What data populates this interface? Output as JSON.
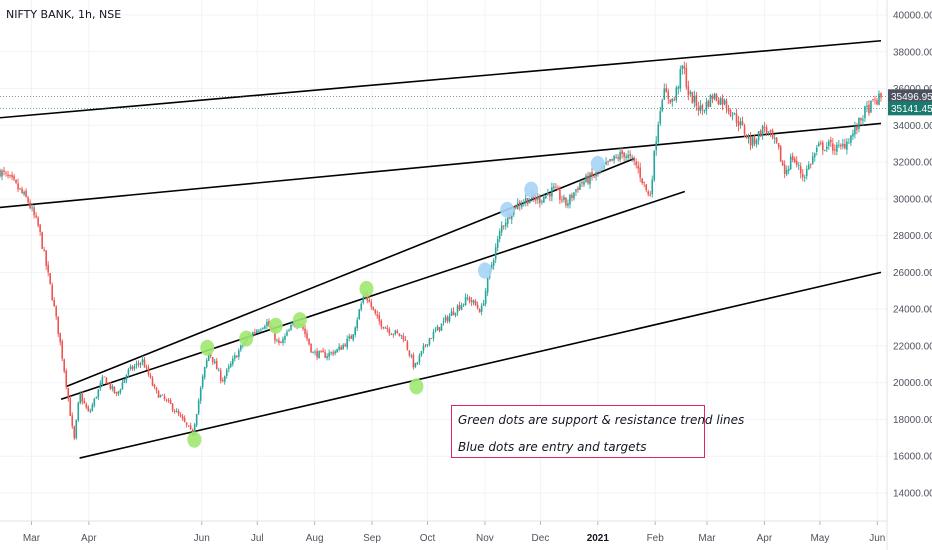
{
  "header": {
    "symbol": "NIFTY BANK, 1h, NSE"
  },
  "annotation": {
    "line1": "Green dots are support & resistance trend lines",
    "line2": "Blue dots are entry and targets"
  },
  "colors": {
    "up": "#26a69a",
    "down": "#ef5350",
    "trendline": "#000000",
    "green_dot": "#9fe870",
    "blue_dot": "#a6d4f5",
    "tag_current": "#4c525e",
    "tag_close": "#1a7a6e",
    "note_border": "#e0245e"
  },
  "chart_data": {
    "type": "candlestick",
    "title": "NIFTY BANK, 1h, NSE",
    "y_ticks": [
      "14000.00",
      "16000.00",
      "18000.00",
      "20000.00",
      "22000.00",
      "24000.00",
      "26000.00",
      "28000.00",
      "30000.00",
      "32000.00",
      "34000.00",
      "36000.00",
      "38000.00",
      "40000.00"
    ],
    "ylim": [
      13000,
      40800
    ],
    "price_tags": [
      {
        "label": "35496.95",
        "value": 35496.95,
        "style": "current"
      },
      {
        "label": "35141.45",
        "value": 35141.45,
        "style": "close"
      }
    ],
    "x_ticks": [
      {
        "label": "Mar",
        "date": "2020-03-01"
      },
      {
        "label": "Apr",
        "date": "2020-04-01"
      },
      {
        "label": "Jun",
        "date": "2020-06-01"
      },
      {
        "label": "Jul",
        "date": "2020-07-01"
      },
      {
        "label": "Aug",
        "date": "2020-08-01"
      },
      {
        "label": "Sep",
        "date": "2020-09-01"
      },
      {
        "label": "Oct",
        "date": "2020-10-01"
      },
      {
        "label": "Nov",
        "date": "2020-11-01"
      },
      {
        "label": "Dec",
        "date": "2020-12-01"
      },
      {
        "label": "2021",
        "date": "2021-01-01",
        "bold": true
      },
      {
        "label": "Feb",
        "date": "2021-02-01"
      },
      {
        "label": "Mar",
        "date": "2021-03-01"
      },
      {
        "label": "Apr",
        "date": "2021-04-01"
      },
      {
        "label": "May",
        "date": "2021-05-01"
      },
      {
        "label": "Jun",
        "date": "2021-06-01"
      }
    ],
    "price_path": [
      [
        "2020-02-13",
        31500
      ],
      [
        "2020-02-20",
        30900
      ],
      [
        "2020-02-28",
        29900
      ],
      [
        "2020-03-05",
        28400
      ],
      [
        "2020-03-12",
        24800
      ],
      [
        "2020-03-16",
        22500
      ],
      [
        "2020-03-19",
        20500
      ],
      [
        "2020-03-24",
        16800
      ],
      [
        "2020-03-27",
        19400
      ],
      [
        "2020-04-01",
        18300
      ],
      [
        "2020-04-09",
        20300
      ],
      [
        "2020-04-16",
        19300
      ],
      [
        "2020-04-22",
        20600
      ],
      [
        "2020-04-30",
        21200
      ],
      [
        "2020-05-07",
        19500
      ],
      [
        "2020-05-15",
        18800
      ],
      [
        "2020-05-22",
        17900
      ],
      [
        "2020-05-27",
        17200
      ],
      [
        "2020-06-02",
        20500
      ],
      [
        "2020-06-05",
        21700
      ],
      [
        "2020-06-12",
        20100
      ],
      [
        "2020-06-19",
        21400
      ],
      [
        "2020-06-26",
        22500
      ],
      [
        "2020-07-06",
        23300
      ],
      [
        "2020-07-13",
        22000
      ],
      [
        "2020-07-20",
        23100
      ],
      [
        "2020-07-24",
        23400
      ],
      [
        "2020-07-31",
        21600
      ],
      [
        "2020-08-07",
        21500
      ],
      [
        "2020-08-14",
        21800
      ],
      [
        "2020-08-21",
        22500
      ],
      [
        "2020-08-28",
        24900
      ],
      [
        "2020-09-04",
        23400
      ],
      [
        "2020-09-11",
        22800
      ],
      [
        "2020-09-18",
        22500
      ],
      [
        "2020-09-24",
        20800
      ],
      [
        "2020-10-01",
        22300
      ],
      [
        "2020-10-09",
        23200
      ],
      [
        "2020-10-16",
        24000
      ],
      [
        "2020-10-23",
        24600
      ],
      [
        "2020-10-30",
        23900
      ],
      [
        "2020-11-04",
        26200
      ],
      [
        "2020-11-10",
        28500
      ],
      [
        "2020-11-17",
        29600
      ],
      [
        "2020-11-24",
        30000
      ],
      [
        "2020-12-01",
        30000
      ],
      [
        "2020-12-08",
        30500
      ],
      [
        "2020-12-15",
        29700
      ],
      [
        "2020-12-22",
        30800
      ],
      [
        "2020-12-31",
        31300
      ],
      [
        "2021-01-08",
        32000
      ],
      [
        "2021-01-15",
        32500
      ],
      [
        "2021-01-22",
        31800
      ],
      [
        "2021-01-29",
        30000
      ],
      [
        "2021-02-02",
        33800
      ],
      [
        "2021-02-05",
        35800
      ],
      [
        "2021-02-11",
        35300
      ],
      [
        "2021-02-16",
        37300
      ],
      [
        "2021-02-19",
        35700
      ],
      [
        "2021-02-26",
        34800
      ],
      [
        "2021-03-04",
        35600
      ],
      [
        "2021-03-10",
        35300
      ],
      [
        "2021-03-18",
        34200
      ],
      [
        "2021-03-25",
        33000
      ],
      [
        "2021-04-01",
        33900
      ],
      [
        "2021-04-08",
        32800
      ],
      [
        "2021-04-12",
        31400
      ],
      [
        "2021-04-16",
        32300
      ],
      [
        "2021-04-22",
        31200
      ],
      [
        "2021-04-30",
        32800
      ],
      [
        "2021-05-06",
        32900
      ],
      [
        "2021-05-12",
        32700
      ],
      [
        "2021-05-20",
        33700
      ],
      [
        "2021-05-25",
        34700
      ],
      [
        "2021-05-31",
        35300
      ],
      [
        "2021-06-03",
        35500
      ]
    ],
    "trendlines": [
      {
        "from": [
          "2020-01-20",
          34200
        ],
        "to": [
          "2021-06-03",
          38600
        ]
      },
      {
        "from": [
          "2020-01-20",
          29300
        ],
        "to": [
          "2021-06-03",
          34100
        ]
      },
      {
        "from": [
          "2020-03-17",
          19100
        ],
        "to": [
          "2021-02-17",
          30400
        ]
      },
      {
        "from": [
          "2020-03-20",
          19800
        ],
        "to": [
          "2021-01-21",
          32200
        ]
      },
      {
        "from": [
          "2020-03-27",
          15900
        ],
        "to": [
          "2021-06-03",
          26000
        ]
      }
    ],
    "green_dots": [
      [
        "2020-05-28",
        16900
      ],
      [
        "2020-06-04",
        21900
      ],
      [
        "2020-06-25",
        22400
      ],
      [
        "2020-07-11",
        23100
      ],
      [
        "2020-07-24",
        23400
      ],
      [
        "2020-08-29",
        25100
      ],
      [
        "2020-09-25",
        19800
      ]
    ],
    "blue_dots": [
      [
        "2020-11-01",
        26100
      ],
      [
        "2020-11-13",
        29400
      ],
      [
        "2020-11-26",
        30500
      ],
      [
        "2021-01-01",
        31900
      ]
    ]
  }
}
